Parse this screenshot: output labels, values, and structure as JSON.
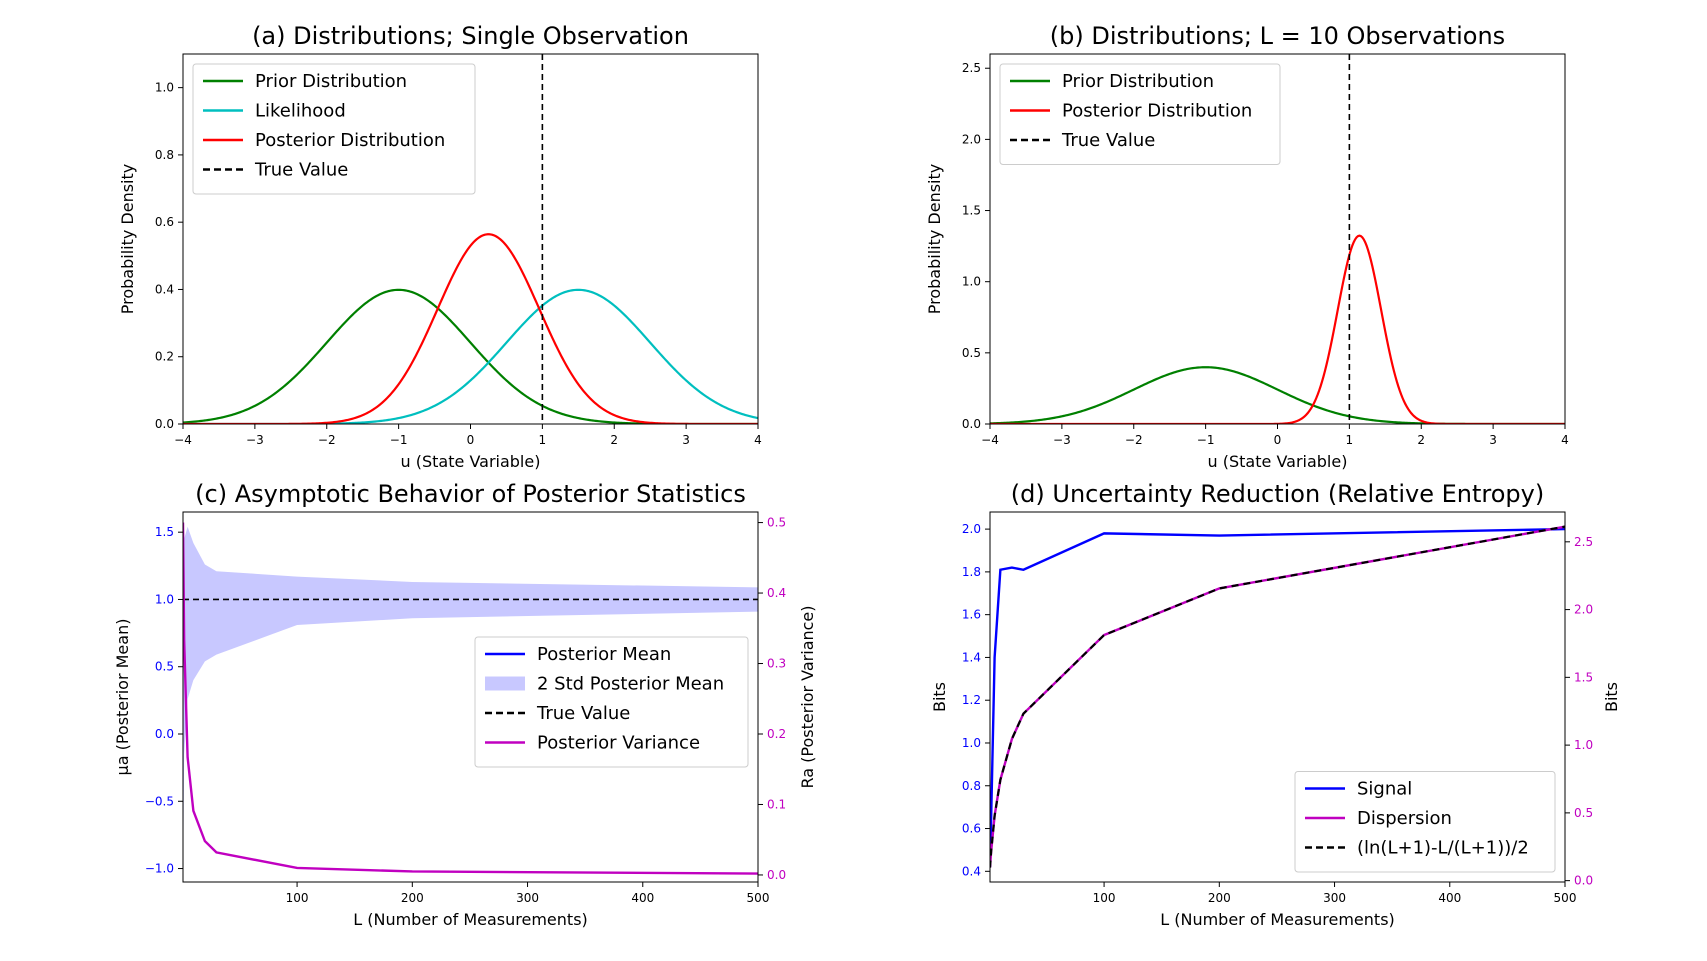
{
  "chart_data": [
    {
      "id": "a",
      "type": "line",
      "title": "(a) Distributions; Single Observation",
      "xlabel": "u (State Variable)",
      "ylabel": "Probability Density",
      "xlim": [
        -4,
        4
      ],
      "ylim": [
        0,
        1.1
      ],
      "xticks": [
        -4,
        -3,
        -2,
        -1,
        0,
        1,
        2,
        3,
        4
      ],
      "yticks": [
        0.0,
        0.2,
        0.4,
        0.6,
        0.8,
        1.0
      ],
      "legend_position": "top-left",
      "series": [
        {
          "name": "Prior Distribution",
          "kind": "gaussian",
          "mean": -1.0,
          "std": 1.0,
          "color": "#008000"
        },
        {
          "name": "Likelihood",
          "kind": "gaussian",
          "mean": 1.5,
          "std": 1.0,
          "color": "#00bfbf"
        },
        {
          "name": "Posterior Distribution",
          "kind": "gaussian",
          "mean": 0.25,
          "std": 0.7071,
          "color": "#ff0000"
        },
        {
          "name": "True Value",
          "kind": "vline",
          "x": 1.0,
          "color": "#000000",
          "dashed": true
        }
      ]
    },
    {
      "id": "b",
      "type": "line",
      "title": "(b) Distributions; L = 10 Observations",
      "xlabel": "u (State Variable)",
      "ylabel": "Probability Density",
      "xlim": [
        -4,
        4
      ],
      "ylim": [
        0,
        2.6
      ],
      "xticks": [
        -4,
        -3,
        -2,
        -1,
        0,
        1,
        2,
        3,
        4
      ],
      "yticks": [
        0.0,
        0.5,
        1.0,
        1.5,
        2.0,
        2.5
      ],
      "legend_position": "top-left",
      "series": [
        {
          "name": "Prior Distribution",
          "kind": "gaussian",
          "mean": -1.0,
          "std": 1.0,
          "color": "#008000"
        },
        {
          "name": "Posterior Distribution",
          "kind": "gaussian",
          "mean": 1.14,
          "std": 0.3015,
          "color": "#ff0000"
        },
        {
          "name": "True Value",
          "kind": "vline",
          "x": 1.0,
          "color": "#000000",
          "dashed": true
        }
      ]
    },
    {
      "id": "c",
      "type": "line",
      "title": "(c) Asymptotic Behavior of Posterior Statistics",
      "xlabel": "L (Number of Measurements)",
      "ylabel": "μa (Posterior Mean)",
      "ylabel_right": "Ra (Posterior Variance)",
      "xlim": [
        1,
        500
      ],
      "ylim": [
        -1.1,
        1.65
      ],
      "ylim_right": [
        -0.01,
        0.515
      ],
      "xticks": [
        100,
        200,
        300,
        400,
        500
      ],
      "yticks": [
        -1.0,
        -0.5,
        0.0,
        0.5,
        1.0,
        1.5
      ],
      "yticks_right": [
        0.0,
        0.1,
        0.2,
        0.3,
        0.4,
        0.5
      ],
      "left_axis_color": "#0000ff",
      "right_axis_color": "#c000c0",
      "legend_position": "center-right",
      "x": [
        1,
        2,
        5,
        10,
        20,
        30,
        100,
        200,
        500
      ],
      "series": [
        {
          "name": "Posterior Mean",
          "axis": "left",
          "values": [
            0.25,
            0.65,
            0.9,
            0.91,
            0.9,
            0.9,
            0.99,
            0.99,
            1.0
          ],
          "color": "#0000ff"
        },
        {
          "name": "2 Std Posterior Mean",
          "axis": "left",
          "kind": "band",
          "lower": [
            -1.16,
            -0.15,
            0.26,
            0.4,
            0.54,
            0.59,
            0.81,
            0.86,
            0.91
          ],
          "upper": [
            1.66,
            1.45,
            1.54,
            1.42,
            1.26,
            1.21,
            1.17,
            1.13,
            1.09
          ],
          "color": "#c8c8ff"
        },
        {
          "name": "True Value",
          "axis": "left",
          "kind": "hline",
          "y": 1.0,
          "color": "#000000",
          "dashed": true
        },
        {
          "name": "Posterior Variance",
          "axis": "right",
          "values": [
            0.5,
            0.333,
            0.167,
            0.091,
            0.048,
            0.032,
            0.0099,
            0.005,
            0.002
          ],
          "color": "#c000c0"
        }
      ]
    },
    {
      "id": "d",
      "type": "line",
      "title": "(d) Uncertainty Reduction (Relative Entropy)",
      "xlabel": "L (Number of Measurements)",
      "ylabel": "Bits",
      "ylabel_right": "Bits",
      "xlim": [
        1,
        500
      ],
      "ylim": [
        0.35,
        2.08
      ],
      "ylim_right": [
        -0.01,
        2.72
      ],
      "xticks": [
        100,
        200,
        300,
        400,
        500
      ],
      "yticks": [
        0.4,
        0.6,
        0.8,
        1.0,
        1.2,
        1.4,
        1.6,
        1.8,
        2.0
      ],
      "yticks_right": [
        0.0,
        0.5,
        1.0,
        1.5,
        2.0,
        2.5
      ],
      "left_axis_color": "#0000ff",
      "right_axis_color": "#c000c0",
      "legend_position": "bottom-right",
      "x": [
        1,
        2,
        5,
        10,
        20,
        30,
        100,
        200,
        500
      ],
      "series": [
        {
          "name": "Signal",
          "axis": "left",
          "values": [
            0.42,
            0.65,
            1.4,
            1.81,
            1.82,
            1.81,
            1.98,
            1.97,
            2.0
          ],
          "color": "#0000ff"
        },
        {
          "name": "Dispersion",
          "axis": "right",
          "values": [
            0.097,
            0.216,
            0.479,
            0.744,
            1.045,
            1.232,
            1.812,
            2.156,
            2.612
          ],
          "color": "#c000c0"
        },
        {
          "name": "(ln(L+1)-L/(L+1))/2",
          "axis": "right",
          "values": [
            0.097,
            0.216,
            0.479,
            0.744,
            1.045,
            1.232,
            1.812,
            2.156,
            2.612
          ],
          "color": "#000000",
          "dashed": true
        }
      ]
    }
  ]
}
